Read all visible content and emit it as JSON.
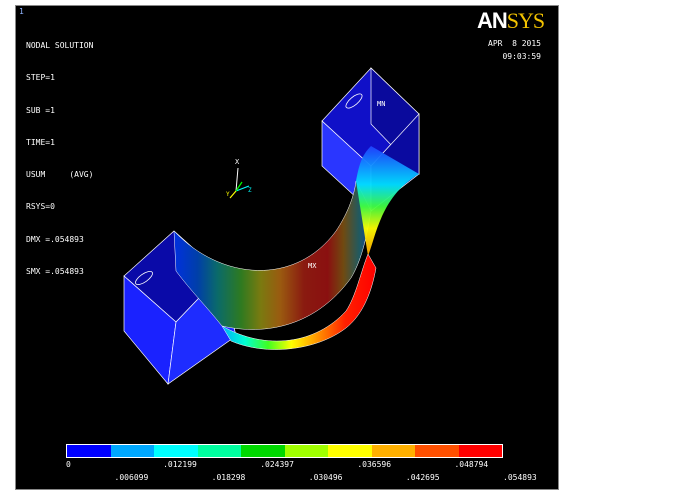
{
  "window_number": "1",
  "solution": {
    "title": "NODAL SOLUTION",
    "step": "STEP=1",
    "sub": "SUB =1",
    "time": "TIME=1",
    "usum": "USUM     (AVG)",
    "rsys": "RSYS=0",
    "dmx": "DMX =.054893",
    "smx": "SMX =.054893"
  },
  "logo": {
    "an": "AN",
    "sys": "SYS"
  },
  "timestamp": {
    "date": "APR  8 2015",
    "time": "09:03:59"
  },
  "triad": {
    "x_label": "X",
    "y_label": "Y",
    "z_label": "Z"
  },
  "markers": {
    "mn": "MN",
    "mx": "MX"
  },
  "legend": {
    "colors": [
      "#0000ff",
      "#00a8ff",
      "#00ffff",
      "#00ffa0",
      "#00d800",
      "#a0ff00",
      "#ffff00",
      "#ffb000",
      "#ff5000",
      "#ff0000"
    ],
    "top_labels": [
      "0",
      ".012199",
      ".024397",
      ".036596",
      ".048794"
    ],
    "bottom_labels": [
      ".006099",
      ".018298",
      ".030496",
      ".042695",
      ".054893"
    ]
  }
}
